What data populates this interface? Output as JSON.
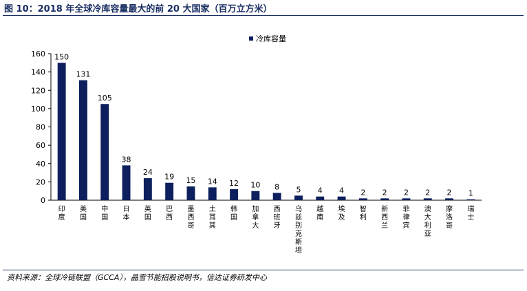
{
  "title": "图 10：2018 年全球冷库容量最大的前 20 大国家（百万立方米）",
  "source": "资料来源：全球冷链联盟（GCCA），晶雪节能招股说明书，信达证券研发中心",
  "chart_data": {
    "type": "bar",
    "categories": [
      "印度",
      "美国",
      "中国",
      "日本",
      "英国",
      "巴西",
      "墨西哥",
      "土耳其",
      "韩国",
      "加拿大",
      "西班牙",
      "乌兹别克斯坦",
      "越南",
      "埃及",
      "智利",
      "新西兰",
      "菲律宾",
      "澳大利亚",
      "摩洛哥",
      "瑞士"
    ],
    "series": [
      {
        "name": "冷库容量",
        "values": [
          150,
          131,
          105,
          38,
          24,
          19,
          15,
          14,
          12,
          10,
          8,
          5,
          4,
          4,
          2,
          2,
          2,
          2,
          2,
          1
        ]
      }
    ],
    "ylim": [
      0,
      160
    ],
    "yticks": [
      0,
      20,
      40,
      60,
      80,
      100,
      120,
      140,
      160
    ],
    "bar_color": "#0d1f5c",
    "legend": "top-right",
    "grid": false
  }
}
